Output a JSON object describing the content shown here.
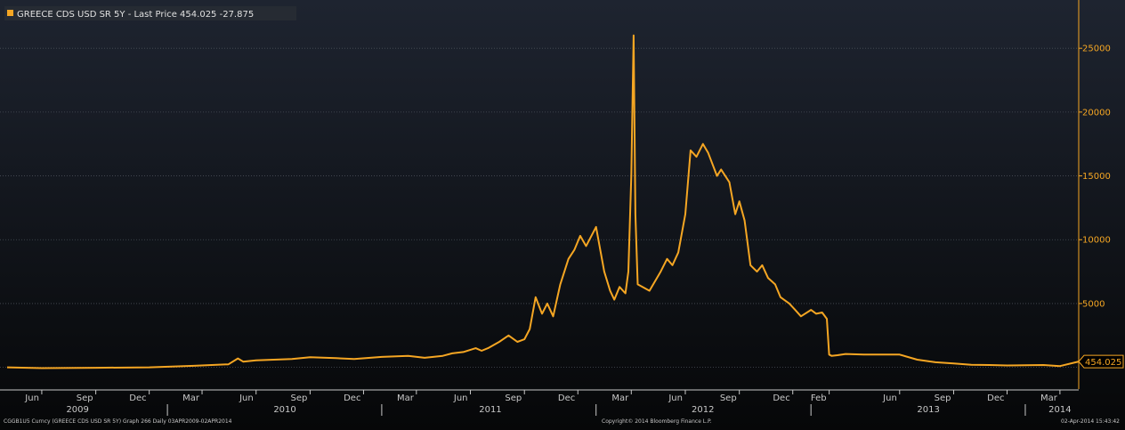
{
  "footer": {
    "left": "CGGB1U5 Curncy (GREECE CDS USD SR 5Y) Graph 266  Daily 03APR2009-02APR2014",
    "center": "Copyright© 2014 Bloomberg Finance L.P.",
    "right": "02-Apr-2014 15:43:42"
  },
  "colors": {
    "line": "#f5a623",
    "background_top": "#1e2430",
    "background_bottom": "#060708",
    "axis_text": "#c8c8c8",
    "grid": "#4a4f58"
  },
  "chart_data": {
    "type": "line",
    "title": "GREECE CDS USD SR 5Y - Last Price 454.025  -27.875",
    "xlabel": "",
    "ylabel": "",
    "grid": true,
    "legend": "top-left",
    "x_range": [
      "2009-04-03",
      "2014-04-02"
    ],
    "ylim": [
      -1700,
      28500
    ],
    "y_ticks": [
      5000,
      10000,
      15000,
      20000,
      25000
    ],
    "y_tick_labels": [
      "5000",
      "10000",
      "15000",
      "20000",
      "25000"
    ],
    "last_price": 454.025,
    "last_price_label": "454.025",
    "month_ticks": [
      {
        "label": "Jun",
        "date": "2009-06-01"
      },
      {
        "label": "Sep",
        "date": "2009-09-01"
      },
      {
        "label": "Dec",
        "date": "2009-12-01"
      },
      {
        "label": "Mar",
        "date": "2010-03-01"
      },
      {
        "label": "Jun",
        "date": "2010-06-01"
      },
      {
        "label": "Sep",
        "date": "2010-09-01"
      },
      {
        "label": "Dec",
        "date": "2010-12-01"
      },
      {
        "label": "Mar",
        "date": "2011-03-01"
      },
      {
        "label": "Jun",
        "date": "2011-06-01"
      },
      {
        "label": "Sep",
        "date": "2011-09-01"
      },
      {
        "label": "Dec",
        "date": "2011-12-01"
      },
      {
        "label": "Mar",
        "date": "2012-03-01"
      },
      {
        "label": "Jun",
        "date": "2012-06-01"
      },
      {
        "label": "Sep",
        "date": "2012-09-01"
      },
      {
        "label": "Dec",
        "date": "2012-12-01"
      },
      {
        "label": "Feb",
        "date": "2013-02-01"
      },
      {
        "label": "Jun",
        "date": "2013-06-01"
      },
      {
        "label": "Sep",
        "date": "2013-09-01"
      },
      {
        "label": "Dec",
        "date": "2013-12-01"
      },
      {
        "label": "Mar",
        "date": "2014-03-01"
      }
    ],
    "year_ticks": [
      {
        "label": "2009",
        "date": "2009-08-01"
      },
      {
        "label": "2010",
        "date": "2010-07-20"
      },
      {
        "label": "2011",
        "date": "2011-07-05"
      },
      {
        "label": "2012",
        "date": "2012-07-01"
      },
      {
        "label": "2013",
        "date": "2013-07-20"
      },
      {
        "label": "2014",
        "date": "2014-03-01"
      }
    ],
    "year_separators": [
      "2010-01-01",
      "2011-01-01",
      "2012-01-01",
      "2013-01-01",
      "2014-01-01"
    ],
    "series": [
      {
        "name": "GREECE CDS USD SR 5Y",
        "x": [
          "2009-04-03",
          "2009-06-01",
          "2009-09-01",
          "2009-12-01",
          "2010-02-15",
          "2010-04-15",
          "2010-05-01",
          "2010-05-10",
          "2010-06-01",
          "2010-08-01",
          "2010-09-01",
          "2010-10-15",
          "2010-11-15",
          "2011-01-01",
          "2011-02-15",
          "2011-03-15",
          "2011-04-15",
          "2011-05-01",
          "2011-05-20",
          "2011-06-10",
          "2011-06-20",
          "2011-07-01",
          "2011-07-20",
          "2011-08-05",
          "2011-08-20",
          "2011-09-01",
          "2011-09-10",
          "2011-09-20",
          "2011-10-01",
          "2011-10-10",
          "2011-10-20",
          "2011-11-01",
          "2011-11-15",
          "2011-11-25",
          "2011-12-05",
          "2011-12-15",
          "2012-01-01",
          "2012-01-15",
          "2012-01-25",
          "2012-02-01",
          "2012-02-10",
          "2012-02-20",
          "2012-02-25",
          "2012-03-01",
          "2012-03-05",
          "2012-03-08",
          "2012-03-12",
          "2012-03-20",
          "2012-04-01",
          "2012-04-20",
          "2012-05-01",
          "2012-05-10",
          "2012-05-20",
          "2012-06-01",
          "2012-06-10",
          "2012-06-20",
          "2012-07-01",
          "2012-07-10",
          "2012-07-25",
          "2012-08-01",
          "2012-08-15",
          "2012-08-25",
          "2012-09-01",
          "2012-09-10",
          "2012-09-20",
          "2012-10-01",
          "2012-10-10",
          "2012-10-20",
          "2012-11-01",
          "2012-11-10",
          "2012-11-25",
          "2012-12-05",
          "2012-12-15",
          "2013-01-01",
          "2013-01-10",
          "2013-01-20",
          "2013-01-28",
          "2013-02-01",
          "2013-02-05",
          "2013-02-15",
          "2013-03-01",
          "2013-04-01",
          "2013-05-01",
          "2013-06-01",
          "2013-07-01",
          "2013-08-01",
          "2013-09-01",
          "2013-10-01",
          "2013-11-01",
          "2013-12-01",
          "2014-01-01",
          "2014-02-01",
          "2014-03-01",
          "2014-04-02"
        ],
        "values": [
          0,
          -60,
          -30,
          0,
          120,
          240,
          700,
          450,
          550,
          650,
          800,
          720,
          650,
          820,
          900,
          750,
          900,
          1100,
          1200,
          1500,
          1300,
          1500,
          2000,
          2500,
          2000,
          2200,
          3000,
          5500,
          4200,
          5000,
          4000,
          6500,
          8500,
          9200,
          10300,
          9500,
          11000,
          7500,
          6000,
          5300,
          6300,
          5800,
          7500,
          15000,
          26000,
          12000,
          6500,
          6300,
          6000,
          7500,
          8500,
          8000,
          9000,
          12000,
          17000,
          16500,
          17500,
          16800,
          15000,
          15500,
          14500,
          12000,
          13000,
          11500,
          8000,
          7500,
          8000,
          7000,
          6500,
          5500,
          5000,
          4500,
          4000,
          4500,
          4200,
          4300,
          3800,
          1000,
          900,
          950,
          1050,
          1000,
          1000,
          1000,
          600,
          400,
          300,
          200,
          180,
          150,
          160,
          180,
          100,
          454
        ]
      }
    ]
  }
}
